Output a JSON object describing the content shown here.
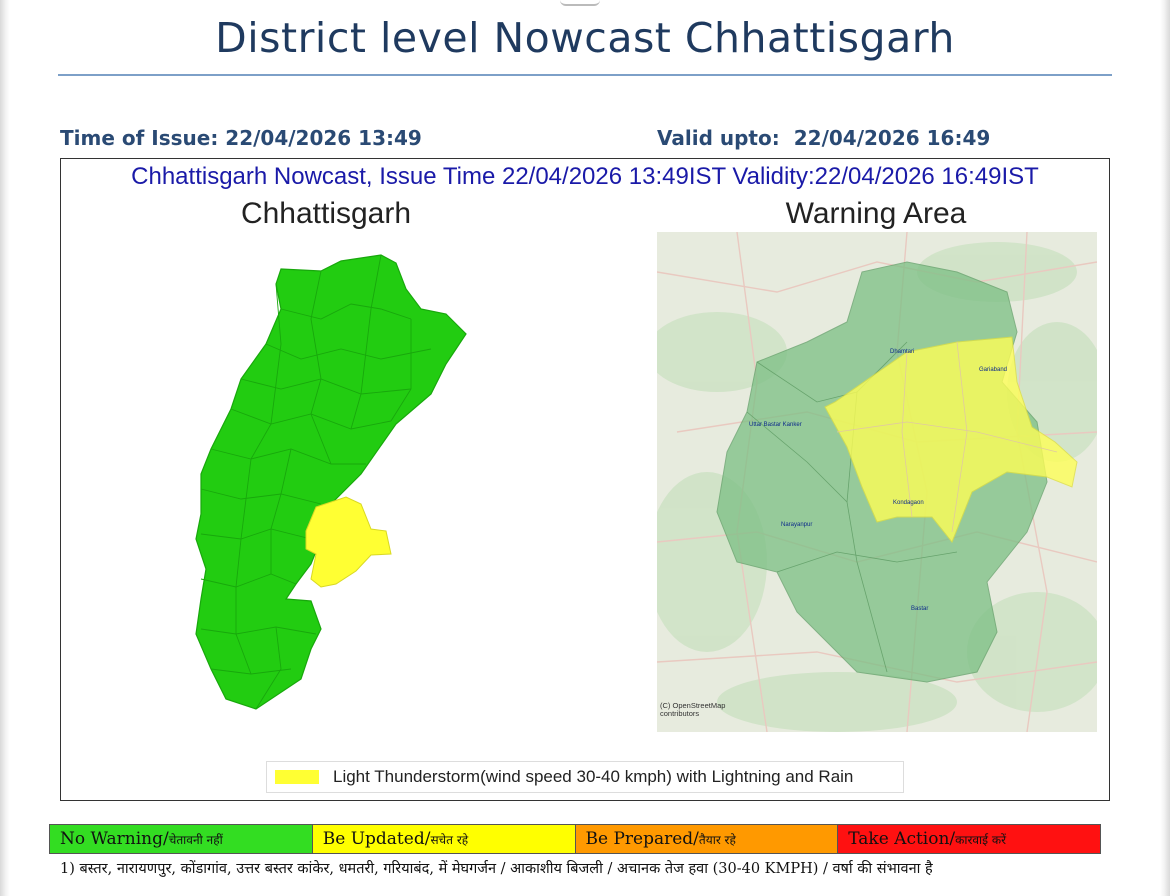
{
  "header": {
    "title": "District level Nowcast Chhattisgarh",
    "issue_time": "Time of Issue: 22/04/2026 13:49",
    "valid_label": "Valid upto:",
    "valid_value": "22/04/2026 16:49"
  },
  "panel": {
    "header": "Chhattisgarh Nowcast, Issue Time 22/04/2026 13:49IST  Validity:22/04/2026 16:49IST",
    "left_title": "Chhattisgarh",
    "right_title": "Warning Area",
    "map_labels": [
      "Dhamtari",
      "Gariaband",
      "Uttar Bastar Kanker",
      "Kondagaon",
      "Narayanpur",
      "Bastar"
    ],
    "osm_credit": "(C) OpenStreetMap contributors",
    "legend": {
      "color": "#ffff33",
      "label": "Light Thunderstorm(wind speed 30-40 kmph) with Lightning and Rain"
    }
  },
  "colors": {
    "no_warning": "#33dd22",
    "warning_area": "#ffff33",
    "be_prepared": "#ff9900",
    "take_action": "#ff1111"
  },
  "color_bar": [
    {
      "color": "#33dd22",
      "label": "No Warning/",
      "hindi": "चेतावनी नहीं"
    },
    {
      "color": "#ffff00",
      "label": "Be Updated/",
      "hindi": "सचेत रहे"
    },
    {
      "color": "#ff9900",
      "label": "Be Prepared/",
      "hindi": "तैयार रहे"
    },
    {
      "color": "#ff1111",
      "label": "Take Action/",
      "hindi": "कारवाई करें"
    }
  ],
  "note": "1) बस्तर, नारायणपुर, कोंडागांव, उत्तर बस्तर कांकेर, धमतरी, गरियाबंद,  में मेघगर्जन / आकाशीय बिजली / अचानक तेज हवा (30-40 KMPH) / वर्षा की संभावना  है"
}
